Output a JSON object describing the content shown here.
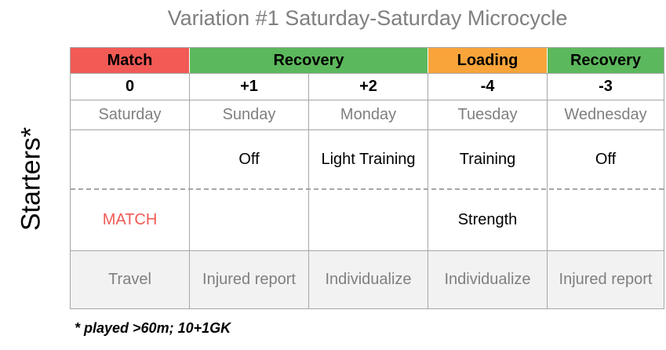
{
  "title": "Variation #1 Saturday-Saturday Microcycle",
  "side_label": "Starters*",
  "phases": [
    {
      "label": "Match",
      "color": "#f15a55"
    },
    {
      "label": "Recovery",
      "color": "#5cb85c"
    },
    {
      "label": "Loading",
      "color": "#f9a43a"
    },
    {
      "label": "Recovery",
      "color": "#5cb85c"
    }
  ],
  "days": [
    {
      "num": "0",
      "name": "Saturday",
      "session_top": "",
      "session_bottom": "MATCH",
      "bottom_color": "#f15a55",
      "note": "Travel"
    },
    {
      "num": "+1",
      "name": "Sunday",
      "session_top": "Off",
      "session_bottom": "",
      "bottom_color": "#000000",
      "note": "Injured report"
    },
    {
      "num": "+2",
      "name": "Monday",
      "session_top": "Light Training",
      "session_bottom": "",
      "bottom_color": "#000000",
      "note": "Individualize"
    },
    {
      "num": "-4",
      "name": "Tuesday",
      "session_top": "Training",
      "session_bottom": "Strength",
      "bottom_color": "#000000",
      "note": "Individualize"
    },
    {
      "num": "-3",
      "name": "Wednesday",
      "session_top": "Off",
      "session_bottom": "",
      "bottom_color": "#000000",
      "note": "Injured report"
    }
  ],
  "footnote": "* played >60m; 10+1GK"
}
